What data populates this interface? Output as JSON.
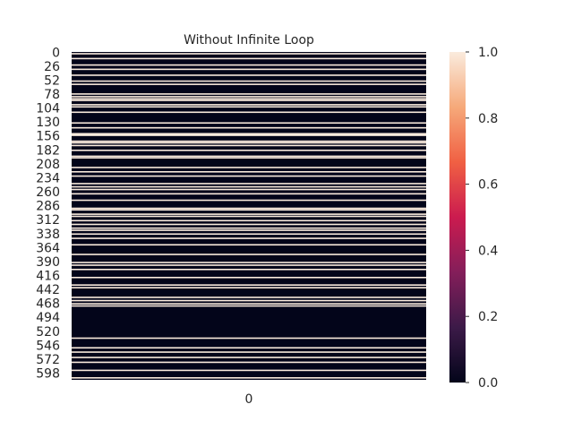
{
  "chart_data": {
    "type": "heatmap",
    "title": "Without Infinite Loop",
    "xlabel": "",
    "ylabel": "",
    "x_categories": [
      "0"
    ],
    "y_tick_labels": [
      "0",
      "26",
      "52",
      "78",
      "104",
      "130",
      "156",
      "182",
      "208",
      "234",
      "260",
      "286",
      "312",
      "338",
      "364",
      "390",
      "416",
      "442",
      "468",
      "494",
      "520",
      "546",
      "572",
      "598"
    ],
    "row_count": 611,
    "default_value": 0,
    "rows_with_value_1": [
      2,
      11,
      23,
      31,
      42,
      53,
      59,
      77,
      82,
      86,
      89,
      97,
      101,
      111,
      131,
      140,
      151,
      152,
      154,
      165,
      168,
      173,
      182,
      193,
      196,
      214,
      222,
      230,
      244,
      250,
      255,
      263,
      275,
      290,
      293,
      301,
      305,
      313,
      320,
      327,
      331,
      338,
      346,
      358,
      376,
      391,
      396,
      404,
      419,
      433,
      438,
      456,
      462,
      468,
      472,
      532,
      550,
      558,
      568,
      577,
      592,
      606
    ],
    "colorbar": {
      "min": 0.0,
      "max": 1.0,
      "ticks": [
        "0.0",
        "0.2",
        "0.4",
        "0.6",
        "0.8",
        "1.0"
      ],
      "colors": [
        "#03051a",
        "#3c1a48",
        "#841e5a",
        "#cb1b4f",
        "#f06043",
        "#f6a97a",
        "#faebdd"
      ]
    },
    "grid": false
  }
}
